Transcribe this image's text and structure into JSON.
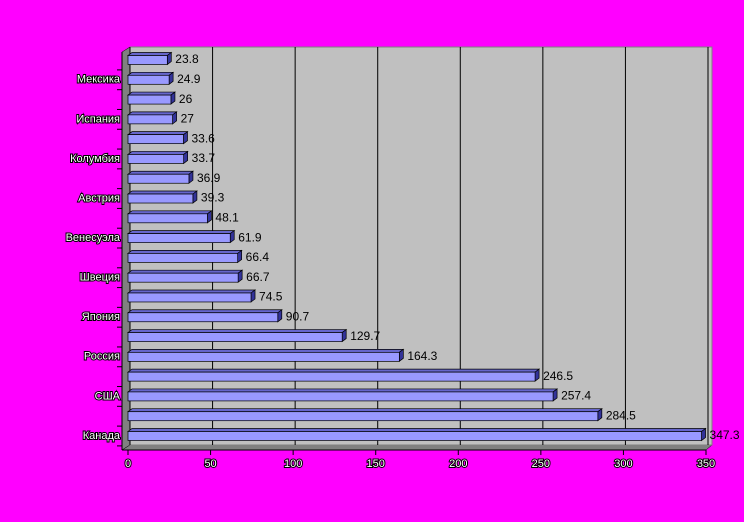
{
  "chart_data": {
    "type": "bar",
    "orientation": "horizontal",
    "categories": [
      null,
      "Мексика",
      null,
      "Испания",
      null,
      "Колумбия",
      null,
      "Австрия",
      null,
      "Венесуэла",
      null,
      "Швеция",
      null,
      "Япония",
      null,
      "Россия",
      null,
      "США",
      null,
      "Канада"
    ],
    "values": [
      23.8,
      24.9,
      26,
      27,
      33.6,
      33.7,
      36.9,
      39.3,
      48.1,
      61.9,
      66.4,
      66.7,
      74.5,
      90.7,
      129.7,
      164.3,
      246.5,
      257.4,
      284.5,
      347.3
    ],
    "color": "#9999ff",
    "xlim": [
      0,
      350
    ],
    "xticks": [
      0,
      50,
      100,
      150,
      200,
      250,
      300,
      350
    ],
    "grid": true
  }
}
